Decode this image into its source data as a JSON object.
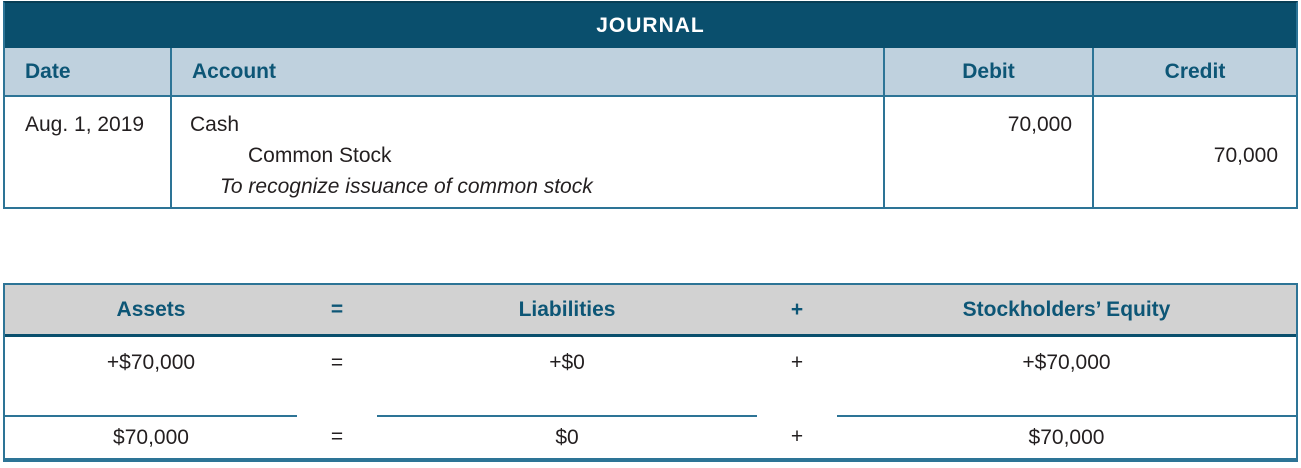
{
  "journal": {
    "title": "JOURNAL",
    "columns": {
      "date": "Date",
      "account": "Account",
      "debit": "Debit",
      "credit": "Credit"
    },
    "entry": {
      "date": "Aug. 1, 2019",
      "debit_account": "Cash",
      "credit_account": "Common Stock",
      "memo": "To recognize issuance of common stock",
      "debit_amount": "70,000",
      "credit_amount": "70,000"
    }
  },
  "equation": {
    "headers": {
      "assets": "Assets",
      "equals": "=",
      "liabilities": "Liabilities",
      "plus": "+",
      "equity": "Stockholders’ Equity"
    },
    "changes": {
      "assets": "+$70,000",
      "equals": "=",
      "liabilities": "+$0",
      "plus": "+",
      "equity": "+$70,000"
    },
    "totals": {
      "assets": "$70,000",
      "equals": "=",
      "liabilities": "$0",
      "plus": "+",
      "equity": "$70,000"
    }
  },
  "colors": {
    "banner_teal": "#0a4f6d",
    "header_light_blue": "#bfd1de",
    "band_gray": "#d2d2d2",
    "border_blue": "#2d7496",
    "heading_text_teal": "#0d5676",
    "body_text": "#231f20"
  }
}
